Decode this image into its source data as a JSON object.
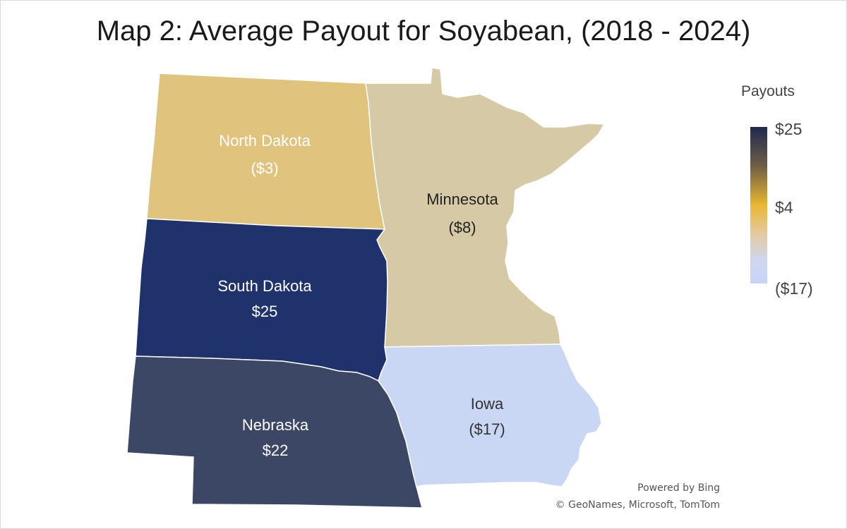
{
  "title": "Map 2: Average Payout for Soyabean, (2018 - 2024)",
  "legend": {
    "title": "Payouts",
    "max_label": "$25",
    "mid_label": "$4",
    "min_label": "($17)"
  },
  "states": [
    {
      "name": "North Dakota",
      "value_label": "($3)",
      "fill": "#e0c47e",
      "text_color": "#ffffff"
    },
    {
      "name": "Minnesota",
      "value_label": "($8)",
      "fill": "#d6c9a5",
      "text_color": "#222222"
    },
    {
      "name": "South Dakota",
      "value_label": "$25",
      "fill": "#1f326c",
      "text_color": "#ffffff"
    },
    {
      "name": "Nebraska",
      "value_label": "$22",
      "fill": "#3c4765",
      "text_color": "#ffffff"
    },
    {
      "name": "Iowa",
      "value_label": "($17)",
      "fill": "#c9d6f4",
      "text_color": "#333333"
    }
  ],
  "credits": {
    "line1": "Powered by Bing",
    "line2": "© GeoNames, Microsoft, TomTom"
  }
}
